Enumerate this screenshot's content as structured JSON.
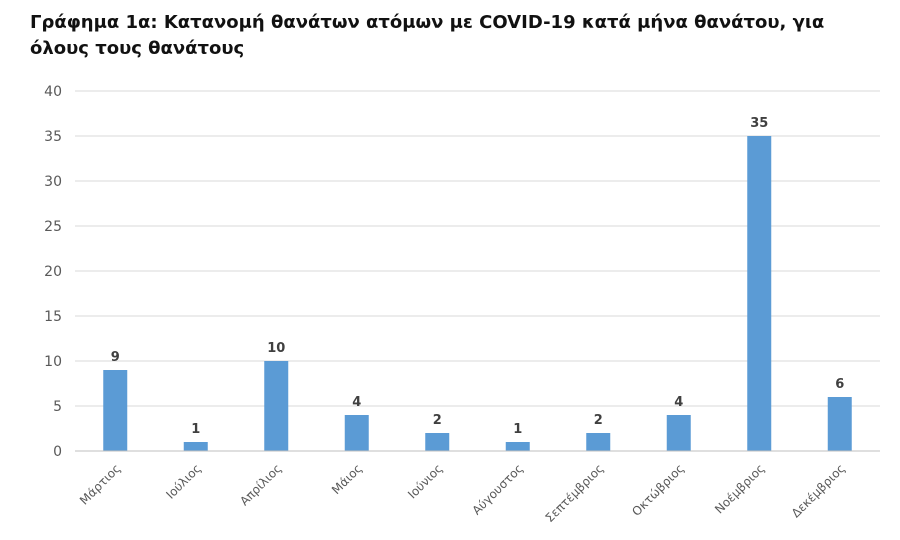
{
  "chart_data": {
    "type": "bar",
    "title": "Γράφημα 1α: Κατανομή θανάτων ατόμων με COVID-19 κατά μήνα θανάτου, για όλους τους θανάτους",
    "xlabel": "",
    "ylabel": "",
    "categories": [
      "Μάρτιος",
      "Ιούλιος",
      "Απρίλιος",
      "Μάιος",
      "Ιούνιος",
      "Αύγουστος",
      "Σεπτέμβριος",
      "Οκτώβριος",
      "Νοέμβριος",
      "Δεκέμβριος"
    ],
    "values": [
      9,
      1,
      10,
      4,
      2,
      1,
      2,
      4,
      35,
      6
    ],
    "ylim": [
      0,
      40
    ],
    "yticks": [
      0,
      5,
      10,
      15,
      20,
      25,
      30,
      35,
      40
    ],
    "grid": true,
    "bar_color": "#5B9BD5",
    "data_labels": true
  }
}
